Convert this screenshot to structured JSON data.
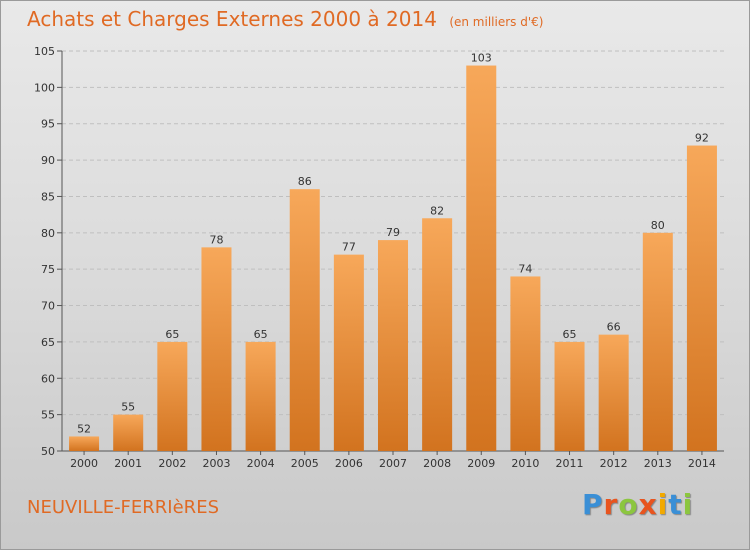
{
  "header": {
    "title": "Achats et Charges Externes 2000 à 2014",
    "unit": "(en milliers d'€)"
  },
  "footer": {
    "commune": "NEUVILLE-FERRIèRES",
    "brand": "Proxiti"
  },
  "colors": {
    "accent": "#e06a24",
    "bar_light": "#f7a85a",
    "bar_dark": "#d2731f",
    "grid": "#bfbfbf",
    "axis": "#555555",
    "brand_letters": [
      "#3a8fd6",
      "#e8541e",
      "#8cc63f",
      "#e8541e",
      "#f2a900",
      "#3a8fd6",
      "#8cc63f"
    ]
  },
  "chart_data": {
    "type": "bar",
    "title": "Achats et Charges Externes 2000 à 2014",
    "subtitle": "(en milliers d'€)",
    "xlabel": "",
    "ylabel": "",
    "categories": [
      "2000",
      "2001",
      "2002",
      "2003",
      "2004",
      "2005",
      "2006",
      "2007",
      "2008",
      "2009",
      "2010",
      "2011",
      "2012",
      "2013",
      "2014"
    ],
    "values": [
      52,
      55,
      65,
      78,
      65,
      86,
      77,
      79,
      82,
      103,
      74,
      65,
      66,
      80,
      92
    ],
    "ylim": [
      50,
      105
    ],
    "yticks": [
      50,
      55,
      60,
      65,
      70,
      75,
      80,
      85,
      90,
      95,
      100,
      105
    ],
    "grid": true,
    "data_labels": true
  }
}
